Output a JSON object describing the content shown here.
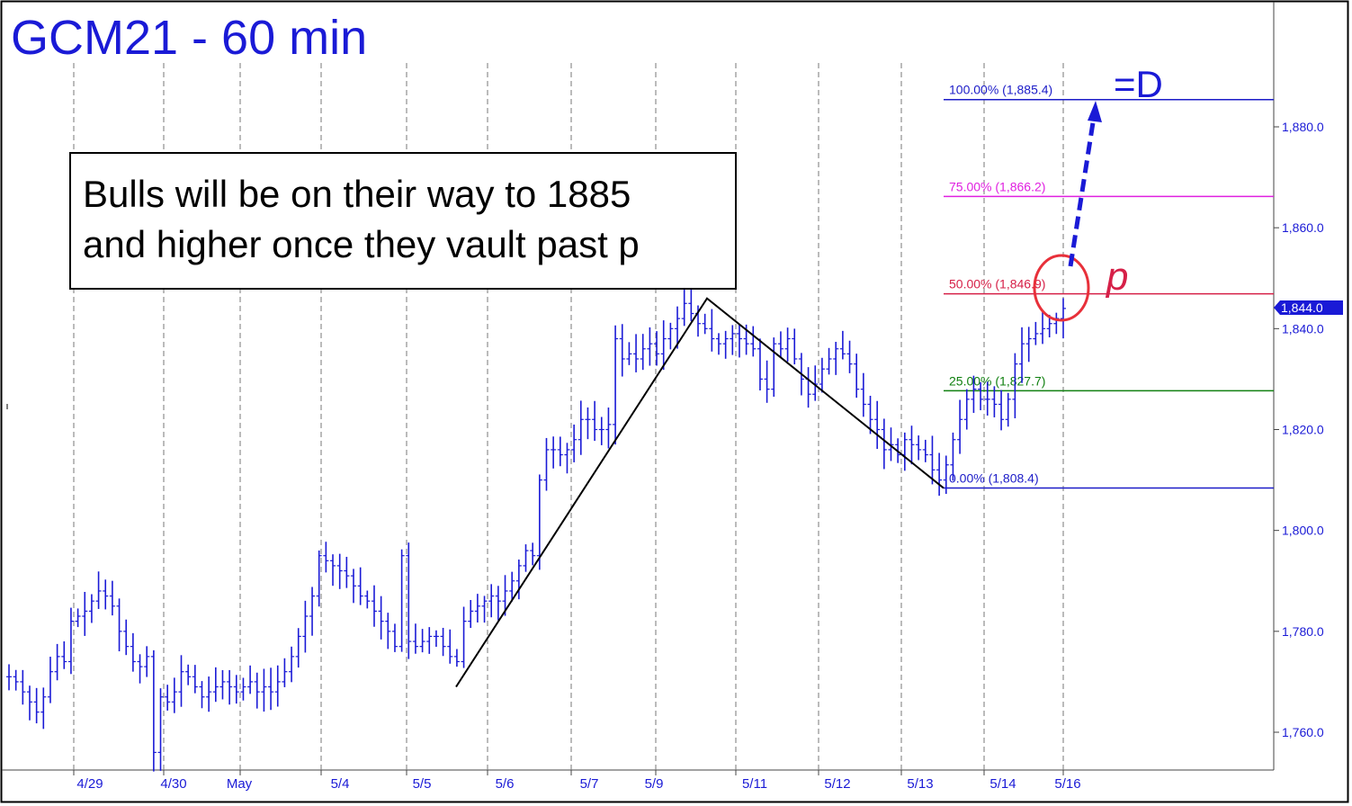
{
  "chart_data": {
    "type": "bar",
    "subtype": "ohlc-price-bars",
    "title": "GCM21 - 60 min",
    "xlabel": "",
    "ylabel": "",
    "ylim": [
      1752,
      1898
    ],
    "y_ticks": [
      {
        "value": 1760,
        "label": "1,760.0"
      },
      {
        "value": 1780,
        "label": "1,780.0"
      },
      {
        "value": 1800,
        "label": "1,800.0"
      },
      {
        "value": 1820,
        "label": "1,820.0"
      },
      {
        "value": 1840,
        "label": "1,840.0"
      },
      {
        "value": 1860,
        "label": "1,860.0"
      },
      {
        "value": 1880,
        "label": "1,880.0"
      }
    ],
    "x_ticks": [
      {
        "index": 0,
        "label": "4/29"
      },
      {
        "index": 1,
        "label": "4/30"
      },
      {
        "index": 2,
        "label": "May"
      },
      {
        "index": 3,
        "label": "5/4"
      },
      {
        "index": 4,
        "label": "5/5"
      },
      {
        "index": 5,
        "label": "5/6"
      },
      {
        "index": 6,
        "label": "5/7"
      },
      {
        "index": 7,
        "label": "5/9"
      },
      {
        "index": 8,
        "label": "5/11"
      },
      {
        "index": 9,
        "label": "5/12"
      },
      {
        "index": 10,
        "label": "5/13"
      },
      {
        "index": 11,
        "label": "5/14"
      },
      {
        "index": 12,
        "label": "5/16"
      }
    ],
    "last_price": {
      "value": 1844.0,
      "label": "1,844.0"
    },
    "series": [
      {
        "values": [
          1771,
          1770,
          1768,
          1766,
          1764,
          1767,
          1772,
          1775,
          1774,
          1782,
          1783,
          1784,
          1786,
          1788,
          1787,
          1785,
          1780,
          1777,
          1774,
          1773,
          1775,
          1756,
          1767,
          1766,
          1768,
          1772,
          1771,
          1769,
          1767,
          1768,
          1769,
          1770,
          1769,
          1768,
          1769,
          1770,
          1768,
          1769,
          1768,
          1770,
          1772,
          1775,
          1779,
          1783,
          1787,
          1795,
          1794,
          1793,
          1792,
          1791,
          1789,
          1787,
          1786,
          1784,
          1782,
          1780,
          1777,
          1795,
          1778,
          1777,
          1778,
          1779,
          1779,
          1777,
          1775,
          1774,
          1782,
          1784,
          1785,
          1786,
          1787,
          1786,
          1788,
          1790,
          1793,
          1796,
          1795,
          1810,
          1816,
          1816,
          1815,
          1816,
          1818,
          1822,
          1822,
          1820,
          1820,
          1821,
          1838,
          1834,
          1835,
          1834,
          1836,
          1837,
          1835,
          1838,
          1840,
          1842,
          1845,
          1843,
          1841,
          1840,
          1838,
          1837,
          1838,
          1839,
          1838,
          1837,
          1836,
          1830,
          1828,
          1837,
          1836,
          1838,
          1834,
          1830,
          1827,
          1829,
          1832,
          1834,
          1836,
          1835,
          1833,
          1828,
          1825,
          1822,
          1820,
          1816,
          1817,
          1815,
          1818,
          1817,
          1816,
          1815,
          1812,
          1810,
          1813,
          1818,
          1822,
          1826,
          1828,
          1826,
          1826,
          1825,
          1822,
          1826,
          1833,
          1837,
          1838,
          1839,
          1840,
          1841,
          1842,
          1844
        ]
      }
    ],
    "annotations": {
      "callout_text_line1": "Bulls will be on their way to 1885",
      "callout_text_line2": "and higher once they vault past p",
      "target_label": "=D",
      "pivot_label": "p",
      "fib_levels": [
        {
          "label": "100.00% (1,885.4)",
          "value": 1885.4,
          "color": "#1c1cc8"
        },
        {
          "label": "75.00% (1,866.2)",
          "value": 1866.2,
          "color": "#e020e0"
        },
        {
          "label": "50.00% (1,846.9)",
          "value": 1846.9,
          "color": "#d62048"
        },
        {
          "label": "25.00% (1,827.7)",
          "value": 1827.7,
          "color": "#108010"
        },
        {
          "label": "0.00% (1,808.4)",
          "value": 1808.4,
          "color": "#1c1cc8"
        }
      ],
      "abc_pattern": [
        {
          "index": 0,
          "value": 1769.0
        },
        {
          "index": 1,
          "value": 1846.0
        },
        {
          "index": 2,
          "value": 1808.4
        }
      ],
      "colors": {
        "bars": "#1a1ad6",
        "title": "#1a1ad6",
        "axis_text": "#1a1ad6",
        "pattern_line": "#000000",
        "circle": "#e8303a",
        "arrow": "#1a1ad6",
        "price_tag_bg": "#1a1ad6"
      }
    }
  }
}
